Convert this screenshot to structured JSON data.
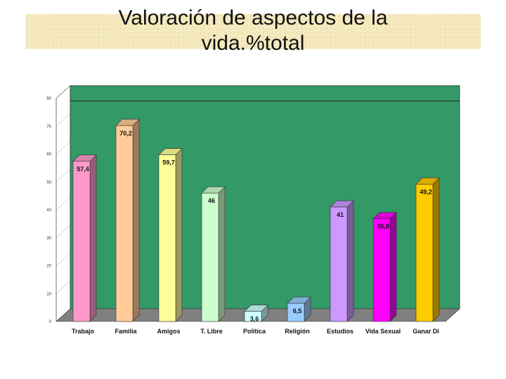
{
  "title_lines": [
    "Valoración de aspectos de la",
    "vida.%total"
  ],
  "chart_data": {
    "type": "bar",
    "title": "Valoración de aspectos de la vida.%total",
    "categories": [
      "Trabajo",
      "Familia",
      "Amigos",
      "T. Libre",
      "Política",
      "Religión",
      "Estudios",
      "Vida Sexual",
      "Ganar Di"
    ],
    "values": [
      57.4,
      70.2,
      59.7,
      46,
      3.6,
      6.5,
      41,
      36.8,
      49.2
    ],
    "value_labels": [
      "57,4",
      "70,2",
      "59,7",
      "46",
      "3,6",
      "6,5",
      "41",
      "36,8",
      "49,2"
    ],
    "bar_colors": [
      "#ff99cc",
      "#ffcc99",
      "#ffff99",
      "#ccffcc",
      "#ccffff",
      "#99ccff",
      "#cc99ff",
      "#ff00ff",
      "#ffcc00"
    ],
    "ylim": [
      0,
      80
    ],
    "yticks": [
      "0",
      "10",
      "20",
      "30",
      "40",
      "50",
      "60",
      "70",
      "80"
    ],
    "reference_line": 74.5,
    "grid": false,
    "background_color": "#339966",
    "floor_color": "#808080",
    "xlabel": "",
    "ylabel": ""
  }
}
